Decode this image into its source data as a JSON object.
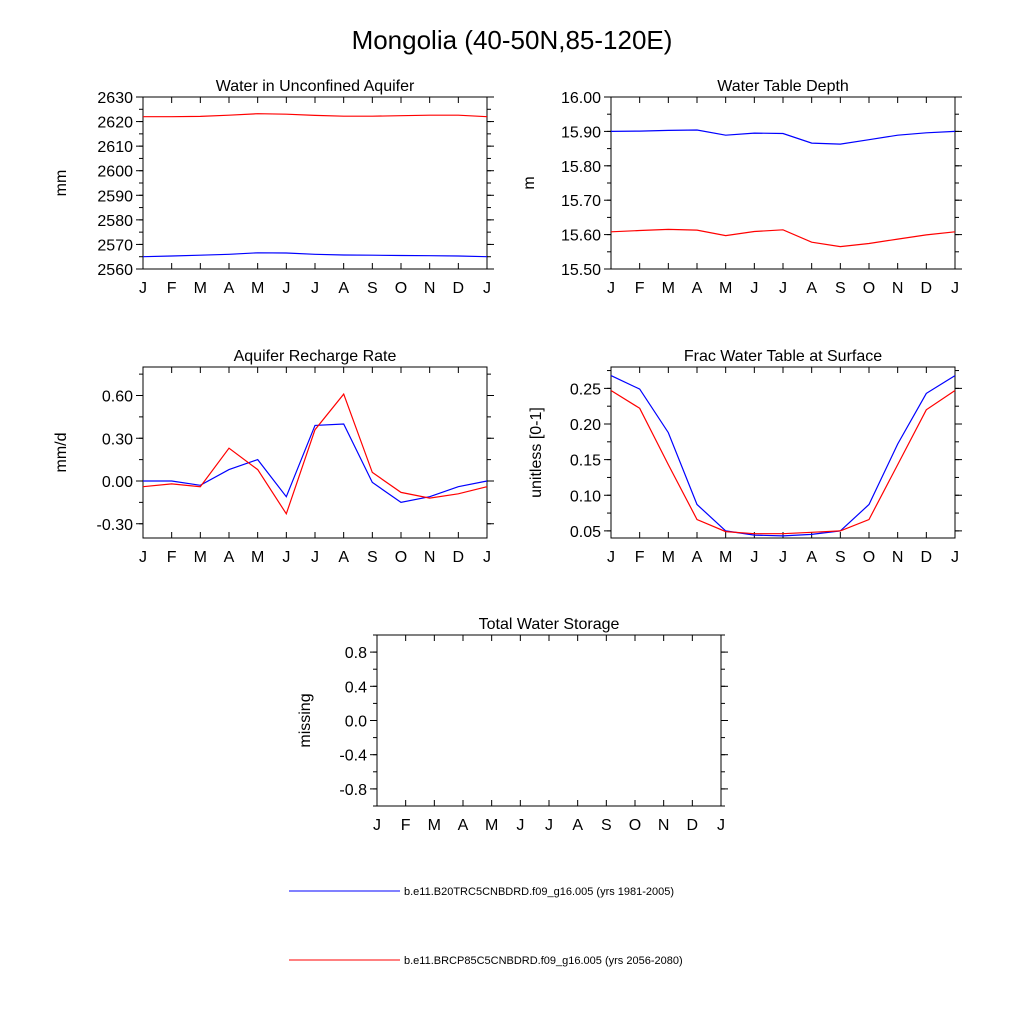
{
  "figure": {
    "title": "Mongolia (40-50N,85-120E)",
    "series_colors": {
      "b.e11.B20TRC5CNBDRD.f09_g16.005 (yrs 1981-2005)": "#0000ff",
      "b.e11.BRCP85C5CNBDRD.f09_g16.005 (yrs 2056-2080)": "#ff0000"
    }
  },
  "legend": {
    "items": [
      {
        "label": "b.e11.B20TRC5CNBDRD.f09_g16.005 (yrs 1981-2005)",
        "color": "#0000ff"
      },
      {
        "label": "b.e11.BRCP85C5CNBDRD.f09_g16.005 (yrs 2056-2080)",
        "color": "#ff0000"
      }
    ]
  },
  "chart_data": [
    {
      "type": "line",
      "title": "Water in Unconfined Aquifer",
      "xlabel": "",
      "ylabel": "mm",
      "categories": [
        "J",
        "F",
        "M",
        "A",
        "M",
        "J",
        "J",
        "A",
        "S",
        "O",
        "N",
        "D",
        "J"
      ],
      "ylim": [
        2560,
        2630
      ],
      "yticks": [
        "2560",
        "2570",
        "2580",
        "2590",
        "2600",
        "2610",
        "2620",
        "2630"
      ],
      "series": [
        {
          "name": "b.e11.B20TRC5CNBDRD.f09_g16.005 (yrs 1981-2005)",
          "color": "#0000ff",
          "values": [
            2565.0,
            2565.3,
            2565.6,
            2566.0,
            2566.6,
            2566.5,
            2566.0,
            2565.7,
            2565.6,
            2565.5,
            2565.4,
            2565.3,
            2565.0
          ]
        },
        {
          "name": "b.e11.BRCP85C5CNBDRD.f09_g16.005 (yrs 2056-2080)",
          "color": "#ff0000",
          "values": [
            2622.0,
            2622.0,
            2622.1,
            2622.6,
            2623.2,
            2623.0,
            2622.5,
            2622.2,
            2622.2,
            2622.4,
            2622.6,
            2622.6,
            2622.0
          ]
        }
      ]
    },
    {
      "type": "line",
      "title": "Water Table Depth",
      "xlabel": "",
      "ylabel": "m",
      "categories": [
        "J",
        "F",
        "M",
        "A",
        "M",
        "J",
        "J",
        "A",
        "S",
        "O",
        "N",
        "D",
        "J"
      ],
      "ylim": [
        15.5,
        16.0
      ],
      "yticks": [
        "15.50",
        "15.60",
        "15.70",
        "15.80",
        "15.90",
        "16.00"
      ],
      "series": [
        {
          "name": "b.e11.B20TRC5CNBDRD.f09_g16.005 (yrs 1981-2005)",
          "color": "#0000ff",
          "values": [
            15.9,
            15.901,
            15.903,
            15.904,
            15.889,
            15.895,
            15.894,
            15.866,
            15.863,
            15.876,
            15.889,
            15.896,
            15.9
          ]
        },
        {
          "name": "b.e11.BRCP85C5CNBDRD.f09_g16.005 (yrs 2056-2080)",
          "color": "#ff0000",
          "values": [
            15.608,
            15.612,
            15.615,
            15.613,
            15.597,
            15.609,
            15.614,
            15.578,
            15.565,
            15.574,
            15.587,
            15.599,
            15.608
          ]
        }
      ]
    },
    {
      "type": "line",
      "title": "Aquifer Recharge Rate",
      "xlabel": "",
      "ylabel": "mm/d",
      "categories": [
        "J",
        "F",
        "M",
        "A",
        "M",
        "J",
        "J",
        "A",
        "S",
        "O",
        "N",
        "D",
        "J"
      ],
      "ylim": [
        -0.4,
        0.8
      ],
      "yticks": [
        "-0.30",
        "0.00",
        "0.30",
        "0.60"
      ],
      "ytick_values": [
        -0.3,
        0.0,
        0.3,
        0.6
      ],
      "series": [
        {
          "name": "b.e11.B20TRC5CNBDRD.f09_g16.005 (yrs 1981-2005)",
          "color": "#0000ff",
          "values": [
            0.0,
            0.0,
            -0.03,
            0.08,
            0.15,
            -0.11,
            0.39,
            0.4,
            -0.01,
            -0.15,
            -0.11,
            -0.04,
            0.0
          ]
        },
        {
          "name": "b.e11.BRCP85C5CNBDRD.f09_g16.005 (yrs 2056-2080)",
          "color": "#ff0000",
          "values": [
            -0.04,
            -0.02,
            -0.04,
            0.23,
            0.08,
            -0.23,
            0.36,
            0.61,
            0.06,
            -0.08,
            -0.12,
            -0.09,
            -0.04
          ]
        }
      ]
    },
    {
      "type": "line",
      "title": "Frac Water Table at Surface",
      "xlabel": "",
      "ylabel": "unitless [0-1]",
      "categories": [
        "J",
        "F",
        "M",
        "A",
        "M",
        "J",
        "J",
        "A",
        "S",
        "O",
        "N",
        "D",
        "J"
      ],
      "ylim": [
        0.04,
        0.28
      ],
      "yticks": [
        "0.05",
        "0.10",
        "0.15",
        "0.20",
        "0.25"
      ],
      "ytick_values": [
        0.05,
        0.1,
        0.15,
        0.2,
        0.25
      ],
      "series": [
        {
          "name": "b.e11.B20TRC5CNBDRD.f09_g16.005 (yrs 1981-2005)",
          "color": "#0000ff",
          "values": [
            0.268,
            0.249,
            0.188,
            0.087,
            0.05,
            0.044,
            0.043,
            0.045,
            0.05,
            0.087,
            0.172,
            0.243,
            0.268
          ]
        },
        {
          "name": "b.e11.BRCP85C5CNBDRD.f09_g16.005 (yrs 2056-2080)",
          "color": "#ff0000",
          "values": [
            0.247,
            0.222,
            0.143,
            0.066,
            0.049,
            0.046,
            0.046,
            0.048,
            0.05,
            0.066,
            0.143,
            0.22,
            0.247
          ]
        }
      ]
    },
    {
      "type": "line",
      "title": "Total Water Storage",
      "xlabel": "",
      "ylabel": "missing",
      "categories": [
        "J",
        "F",
        "M",
        "A",
        "M",
        "J",
        "J",
        "A",
        "S",
        "O",
        "N",
        "D",
        "J"
      ],
      "ylim": [
        -1.0,
        1.0
      ],
      "yticks": [
        "-0.8",
        "-0.4",
        "0.0",
        "0.4",
        "0.8"
      ],
      "ytick_values": [
        -0.8,
        -0.4,
        0.0,
        0.4,
        0.8
      ],
      "series": []
    }
  ]
}
